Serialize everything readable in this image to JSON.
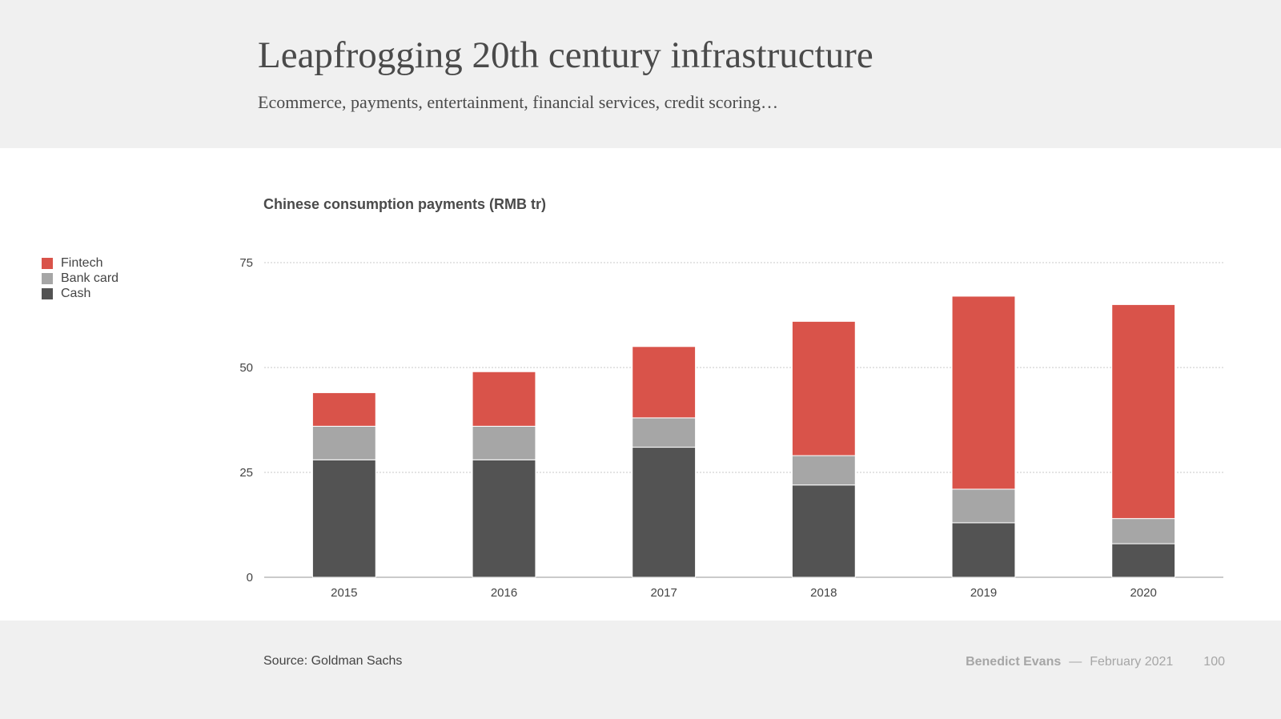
{
  "slide": {
    "title": "Leapfrogging 20th century infrastructure",
    "subtitle": "Ecommerce, payments, entertainment, financial services, credit scoring…"
  },
  "footer": {
    "source": "Source: Goldman Sachs",
    "author": "Benedict Evans",
    "separator": "—",
    "date": "February 2021",
    "page_number": "100"
  },
  "chart_data": {
    "type": "bar",
    "stacked": true,
    "title": "Chinese consumption payments (RMB tr)",
    "xlabel": "",
    "ylabel": "",
    "categories": [
      "2015",
      "2016",
      "2017",
      "2018",
      "2019",
      "2020"
    ],
    "series": [
      {
        "name": "Cash",
        "color": "#535353",
        "values": [
          28,
          28,
          31,
          22,
          13,
          8
        ]
      },
      {
        "name": "Bank card",
        "color": "#a6a6a6",
        "values": [
          8,
          8,
          7,
          7,
          8,
          6
        ]
      },
      {
        "name": "Fintech",
        "color": "#d9534a",
        "values": [
          8,
          13,
          17,
          32,
          46,
          51
        ]
      }
    ],
    "legend_order": [
      "Fintech",
      "Bank card",
      "Cash"
    ],
    "ylim": [
      0,
      75
    ],
    "yticks": [
      0,
      25,
      50,
      75
    ],
    "grid": true,
    "legend_position": "left"
  }
}
